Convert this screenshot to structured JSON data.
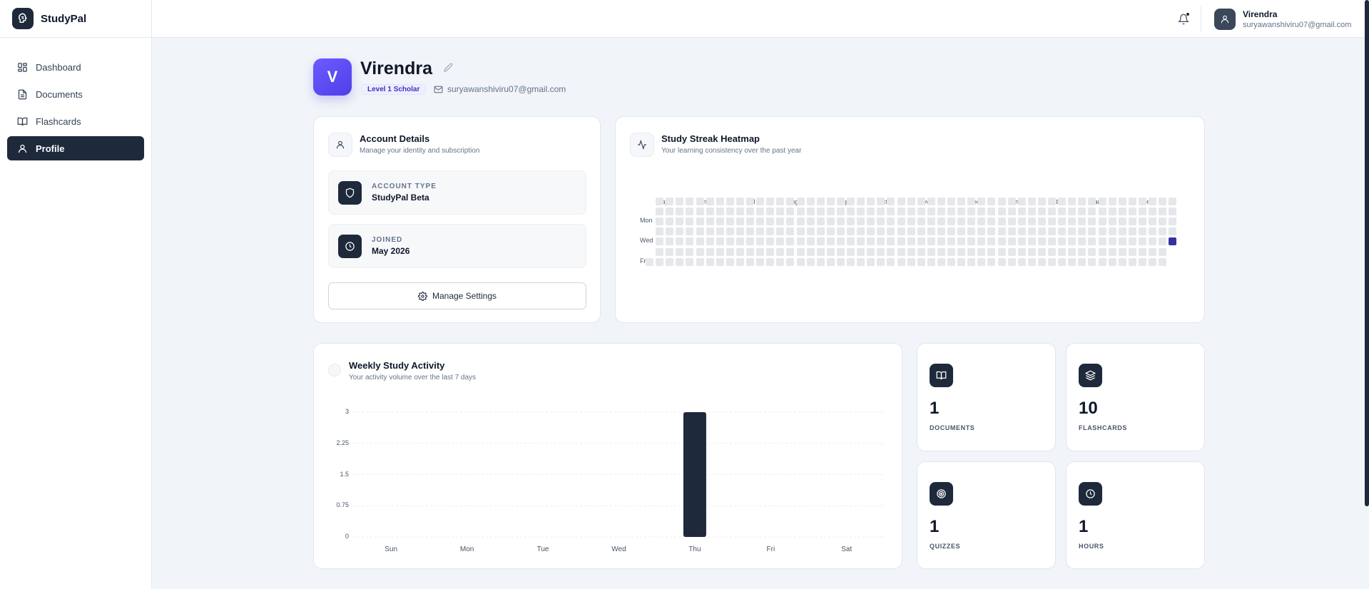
{
  "app": {
    "name": "StudyPal"
  },
  "sidebar": {
    "items": [
      {
        "label": "Dashboard",
        "icon": "dashboard-icon",
        "active": false
      },
      {
        "label": "Documents",
        "icon": "document-icon",
        "active": false
      },
      {
        "label": "Flashcards",
        "icon": "book-icon",
        "active": false
      },
      {
        "label": "Profile",
        "icon": "user-icon",
        "active": true
      }
    ]
  },
  "header": {
    "notifications_icon": "bell-icon",
    "user": {
      "name": "Virendra",
      "email": "suryawanshiviru07@gmail.com"
    }
  },
  "profile": {
    "initial": "V",
    "name": "Virendra",
    "level": "Level 1 Scholar",
    "email": "suryawanshiviru07@gmail.com"
  },
  "account": {
    "title": "Account Details",
    "subtitle": "Manage your identity and subscription",
    "account_type_label": "ACCOUNT TYPE",
    "account_type_value": "StudyPal Beta",
    "joined_label": "JOINED",
    "joined_value": "May 2026",
    "manage_button": "Manage Settings"
  },
  "heatmap": {
    "title": "Study Streak Heatmap",
    "subtitle": "Your learning consistency over the past year",
    "months": [
      "May",
      "Jun",
      "Jul",
      "Aug",
      "Sep",
      "Oct",
      "Nov",
      "Dec",
      "Jan",
      "Feb",
      "Mar",
      "Apr"
    ],
    "day_labels": [
      "Mon",
      "Wed",
      "Fri"
    ],
    "weeks": 53,
    "active_cells": [
      {
        "week": 52,
        "day": 4
      }
    ]
  },
  "weekly": {
    "title": "Weekly Study Activity",
    "subtitle": "Your activity volume over the last 7 days",
    "colors": {
      "bar": "#1e293b",
      "grid": "#e9edf2"
    }
  },
  "chart_data": {
    "type": "bar",
    "categories": [
      "Sun",
      "Mon",
      "Tue",
      "Wed",
      "Thu",
      "Fri",
      "Sat"
    ],
    "values": [
      0,
      0,
      0,
      0,
      3,
      0,
      0
    ],
    "ylim": [
      0,
      3
    ],
    "yticks": [
      "3",
      "2.25",
      "1.5",
      "0.75",
      "0"
    ],
    "grid": true
  },
  "stats": [
    {
      "value": "1",
      "label": "DOCUMENTS",
      "icon": "open-book-icon"
    },
    {
      "value": "10",
      "label": "FLASHCARDS",
      "icon": "layers-icon"
    },
    {
      "value": "1",
      "label": "QUIZZES",
      "icon": "target-icon"
    },
    {
      "value": "1",
      "label": "HOURS",
      "icon": "clock-icon"
    }
  ]
}
